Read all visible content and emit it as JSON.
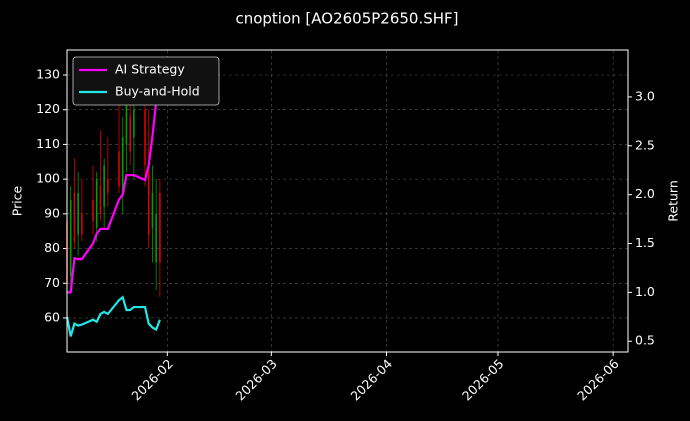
{
  "chart_data": {
    "type": "candlestick",
    "title": "cnoption [AO2605P2650.SHF]",
    "ylabel": "Price",
    "y2label": "Return",
    "x": [
      5,
      6,
      7,
      8,
      9,
      12,
      13,
      14,
      15,
      16,
      19,
      20,
      21,
      22,
      23,
      26,
      27,
      28,
      29,
      30
    ],
    "open": [
      88,
      72,
      96,
      84,
      90,
      94,
      86,
      98,
      92,
      100,
      108,
      96,
      110,
      118,
      112,
      120,
      102,
      86,
      76,
      96
    ],
    "high": [
      108,
      98,
      106,
      102,
      100,
      104,
      102,
      114,
      106,
      112,
      124,
      118,
      130,
      132,
      126,
      128,
      120,
      104,
      100,
      100
    ],
    "low": [
      66,
      68,
      80,
      78,
      82,
      84,
      82,
      88,
      86,
      92,
      96,
      90,
      102,
      104,
      100,
      98,
      80,
      76,
      68,
      66
    ],
    "close": [
      70,
      94,
      82,
      96,
      84,
      88,
      100,
      90,
      104,
      96,
      98,
      112,
      122,
      108,
      120,
      104,
      84,
      96,
      90,
      76
    ],
    "up_color": "#00a000",
    "down_color": "#e00000",
    "series": [
      {
        "name": "AI Strategy",
        "color": "#ff00ff",
        "axis": "y2",
        "values": [
          1.0,
          1.0,
          1.35,
          1.34,
          1.34,
          1.5,
          1.6,
          1.65,
          1.65,
          1.65,
          1.95,
          2.0,
          2.2,
          2.2,
          2.2,
          2.15,
          2.3,
          2.6,
          2.95,
          3.0
        ]
      },
      {
        "name": "Buy-and-Hold",
        "color": "#22e6e6",
        "axis": "y2",
        "values": [
          0.75,
          0.55,
          0.68,
          0.66,
          0.67,
          0.72,
          0.7,
          0.78,
          0.8,
          0.78,
          0.92,
          0.95,
          0.82,
          0.82,
          0.85,
          0.85,
          0.68,
          0.64,
          0.62,
          0.72
        ]
      }
    ],
    "xlim": [
      5,
      156
    ],
    "xticks": [
      {
        "value": 32,
        "label": "2026-02"
      },
      {
        "value": 60,
        "label": "2026-03"
      },
      {
        "value": 91,
        "label": "2026-04"
      },
      {
        "value": 121,
        "label": "2026-05"
      },
      {
        "value": 152,
        "label": "2026-06"
      }
    ],
    "ylim": [
      50.2,
      137.2
    ],
    "yticks": [
      60,
      70,
      80,
      90,
      100,
      110,
      120,
      130
    ],
    "y2lim": [
      0.39,
      3.48
    ],
    "y2ticks": [
      0.5,
      {
        "value": 1,
        "label": "1.0"
      },
      1.5,
      {
        "value": 2,
        "label": "2.0"
      },
      2.5,
      {
        "value": 3,
        "label": "3.0"
      }
    ],
    "grid": true,
    "legend": "upper-left"
  }
}
